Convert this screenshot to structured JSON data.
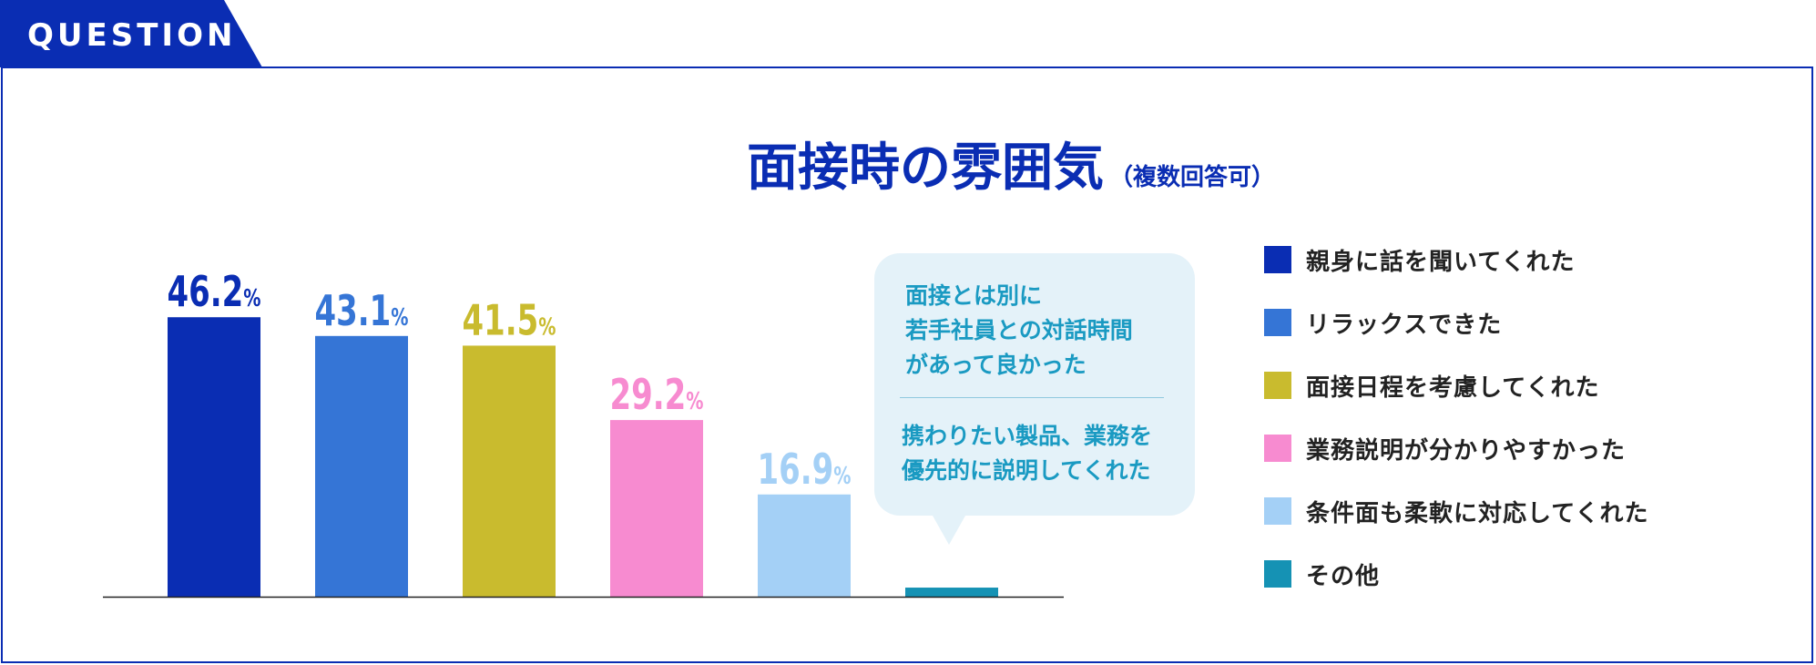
{
  "header": {
    "tab_label": "QUESTION",
    "accent": "#0a2db3"
  },
  "title": {
    "main": "面接時の雰囲気",
    "sub": "（複数回答可）"
  },
  "chart_data": {
    "type": "bar",
    "categories": [
      "親身に話を聞いてくれた",
      "リラックスできた",
      "面接日程を考慮してくれた",
      "業務説明が分かりやすかった",
      "条件面も柔軟に対応してくれた",
      "その他"
    ],
    "values": [
      46.2,
      43.1,
      41.5,
      29.2,
      16.9,
      1.5
    ],
    "value_labels": [
      "46.2",
      "43.1",
      "41.5",
      "29.2",
      "16.9",
      ""
    ],
    "unit": "%",
    "colors": [
      "#0a2db3",
      "#3575d6",
      "#c9bb2e",
      "#f78bd0",
      "#a4d0f6",
      "#1592b4"
    ],
    "ylim": [
      0,
      50
    ],
    "legend_position": "right",
    "grid": false
  },
  "callout": {
    "text1_lines": [
      "面接とは別に",
      "若手社員との対話時間",
      "があって良かった"
    ],
    "text2_lines": [
      "携わりたい製品、業務を",
      "優先的に説明してくれた"
    ],
    "color": "#1a9ac2",
    "background": "#e4f2f9"
  }
}
